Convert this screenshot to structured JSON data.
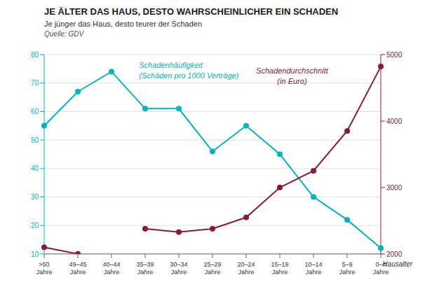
{
  "chart_data": {
    "type": "line",
    "title": "JE ÄLTER DAS HAUS, DESTO WAHRSCHEINLICHER EIN SCHADEN",
    "subtitle": "Je jünger das Haus, desto teurer der Schaden",
    "annotations": [
      "Quelle: GDV"
    ],
    "xlabel": "Hausalter",
    "categories": [
      ">50\nJahre",
      "49–45\nJahre",
      "40–44\nJahre",
      "35–39\nJahre",
      "30–34\nJahre",
      "25–29\nJahre",
      "20–24\nJahre",
      "15–19\nJahre",
      "10–14\nJahre",
      "5–9\nJahre",
      "0–4\nJahre"
    ],
    "series": [
      {
        "name": "Schadenhäufigkeit\n(Schäden pro 1000 Verträge)",
        "color": "#00B5BD",
        "values": [
          55,
          67,
          74,
          61,
          61,
          46,
          55,
          45,
          30,
          22,
          12
        ],
        "marker": "circle",
        "line_style": "solid"
      },
      {
        "name": "Schadendurchschnitt\n(in Euro)",
        "color": "#8B1A34",
        "values": [
          2100,
          2000,
          null,
          2380,
          2330,
          2380,
          2550,
          3000,
          3250,
          3850,
          4820
        ],
        "axis": "y2",
        "marker": "circle",
        "line_style": "solid"
      }
    ],
    "ylim": [
      10,
      80
    ],
    "yticks": [
      10,
      20,
      30,
      40,
      50,
      60,
      70,
      80
    ],
    "y2lim": [
      2000,
      5000
    ],
    "y2ticks": [
      2000,
      3000,
      4000,
      5000
    ],
    "grid": true
  }
}
